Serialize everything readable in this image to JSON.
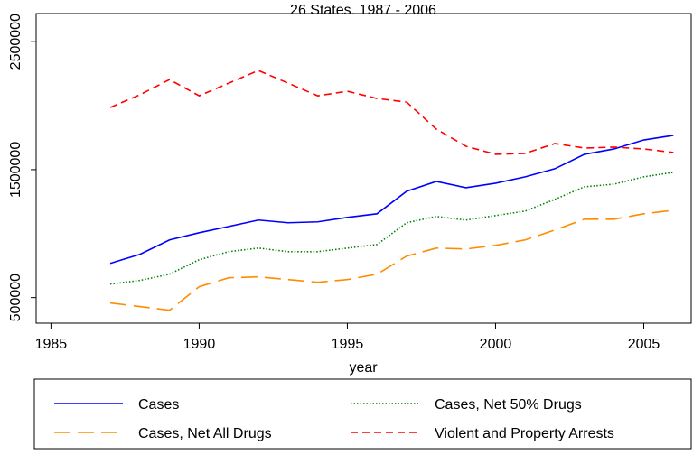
{
  "chart_data": {
    "type": "line",
    "title": "26 States, 1987 - 2006",
    "x_label": "year",
    "x": [
      1987,
      1988,
      1989,
      1990,
      1991,
      1992,
      1993,
      1994,
      1995,
      1996,
      1997,
      1998,
      1999,
      2000,
      2001,
      2002,
      2003,
      2004,
      2005,
      2006
    ],
    "series": [
      {
        "name": "Cases",
        "color": "#0000ff",
        "style": "solid",
        "values": [
          767600,
          838000,
          950700,
          1007000,
          1056000,
          1106000,
          1085000,
          1092000,
          1127000,
          1155000,
          1331000,
          1408000,
          1359000,
          1394000,
          1444000,
          1507000,
          1620000,
          1662000,
          1732000,
          1768000
        ]
      },
      {
        "name": "Cases, Net 50% Drugs",
        "color": "#008000",
        "style": "dotted",
        "values": [
          606000,
          634000,
          683000,
          796000,
          859000,
          887000,
          859000,
          859000,
          887000,
          915000,
          1085000,
          1134000,
          1106000,
          1141000,
          1176000,
          1268000,
          1366000,
          1387000,
          1444000,
          1479000
        ]
      },
      {
        "name": "Cases, Net All Drugs",
        "color": "#ff8c00",
        "style": "longdash",
        "values": [
          458000,
          430000,
          401000,
          585000,
          655000,
          662000,
          641000,
          620000,
          641000,
          683000,
          824000,
          887000,
          880000,
          908000,
          951000,
          1028000,
          1113000,
          1113000,
          1155000,
          1183000
        ]
      },
      {
        "name": "Violent and Property Arrests",
        "color": "#ff0000",
        "style": "dash",
        "values": [
          1986000,
          2085000,
          2204000,
          2077000,
          2176000,
          2275000,
          2176000,
          2077000,
          2113000,
          2056000,
          2028000,
          1817000,
          1683000,
          1620000,
          1627000,
          1704000,
          1669000,
          1676000,
          1662000,
          1634000
        ]
      }
    ],
    "xlim": [
      1984.5,
      2006.6
    ],
    "xticks": [
      1985,
      1990,
      1995,
      2000,
      2005
    ],
    "ylim": [
      300000,
      2720000
    ],
    "yticks": [
      500000,
      1500000,
      2500000
    ]
  }
}
